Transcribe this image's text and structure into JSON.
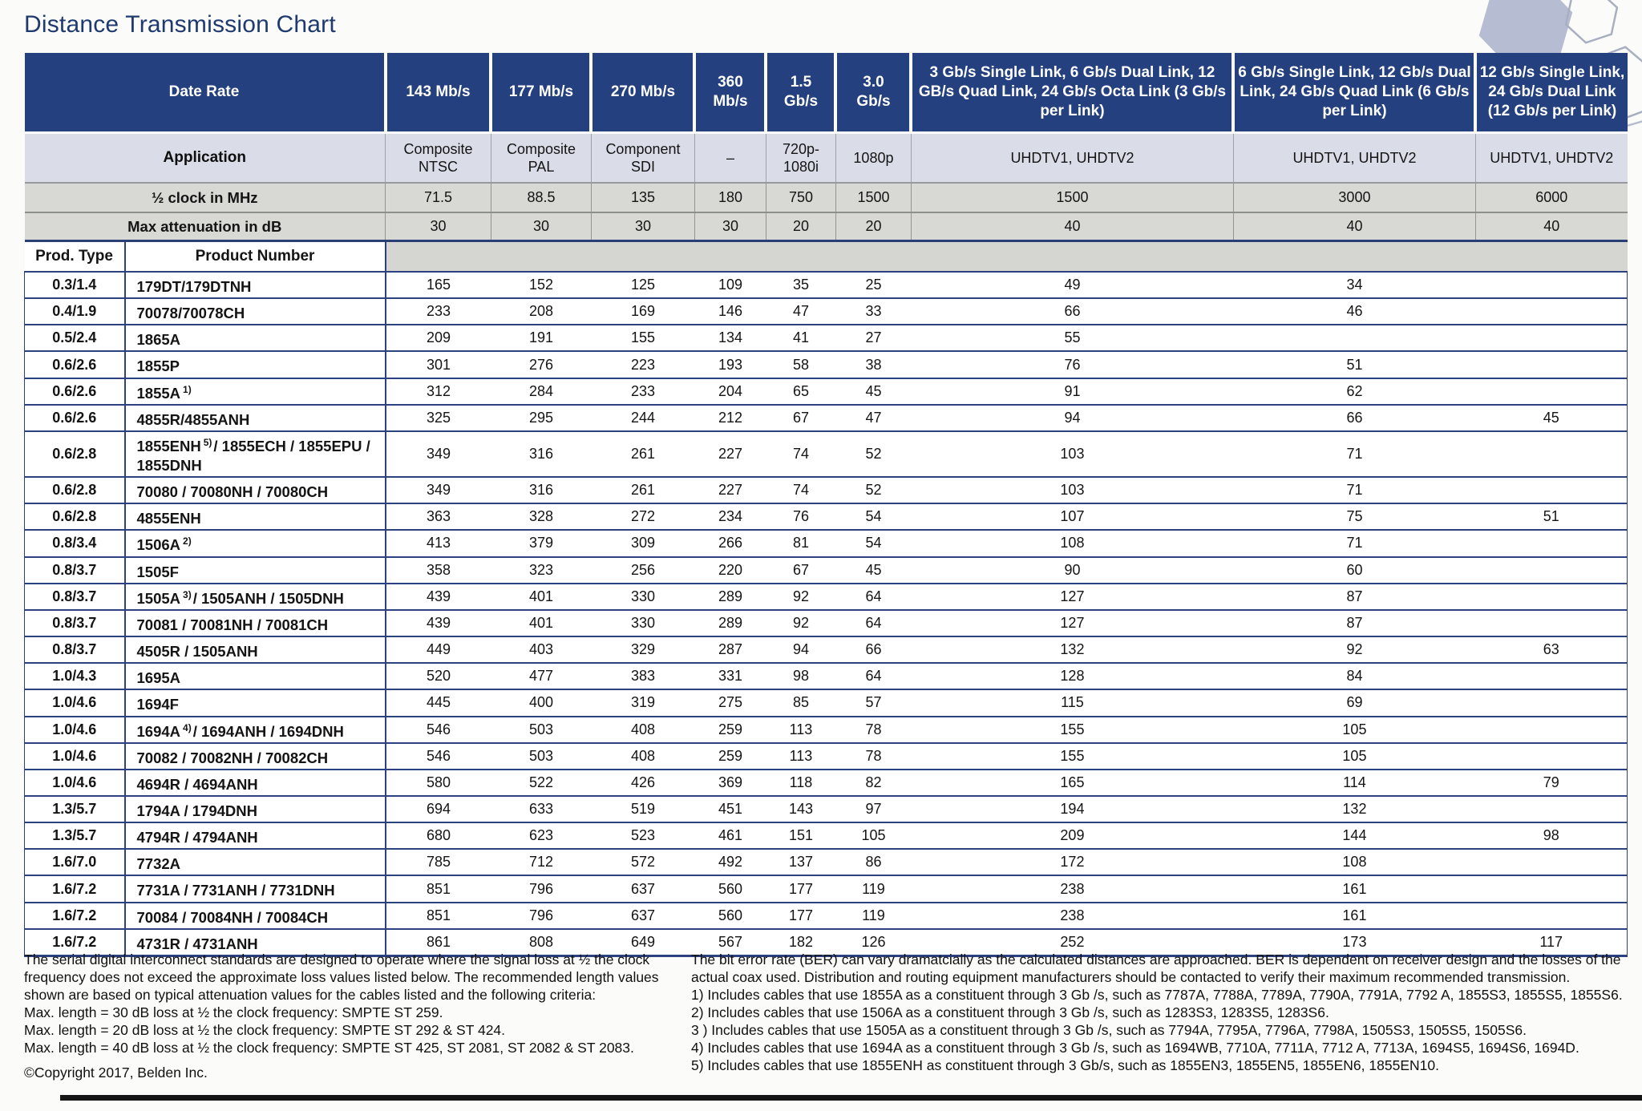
{
  "title": "Distance Transmission Chart",
  "colors": {
    "header_navy": "#24407e",
    "application_row": "#dadce8",
    "metric_row_gray": "#d8d9d4",
    "grid_navy": "#2c4180",
    "title_navy": "#1e3a6f"
  },
  "table": {
    "header": {
      "date_rate_label": "Date Rate",
      "application_label": "Application",
      "clock_label": "½ clock in MHz",
      "attenuation_label": "Max attenuation in dB",
      "prod_type_label": "Prod. Type",
      "product_number_label": "Product Number"
    },
    "columns": [
      {
        "rate": "143 Mb/s",
        "application": "Composite\nNTSC",
        "clock": "71.5",
        "attenuation": "30"
      },
      {
        "rate": "177 Mb/s",
        "application": "Composite\nPAL",
        "clock": "88.5",
        "attenuation": "30"
      },
      {
        "rate": "270 Mb/s",
        "application": "Component\nSDI",
        "clock": "135",
        "attenuation": "30"
      },
      {
        "rate": "360\nMb/s",
        "application": "–",
        "clock": "180",
        "attenuation": "30"
      },
      {
        "rate": "1.5\nGb/s",
        "application": "720p-\n1080i",
        "clock": "750",
        "attenuation": "20"
      },
      {
        "rate": "3.0\nGb/s",
        "application": "1080p",
        "clock": "1500",
        "attenuation": "20"
      },
      {
        "rate": "3 Gb/s Single Link, 6 Gb/s Dual Link, 12 GB/s Quad Link, 24 Gb/s Octa Link (3 Gb/s per Link)",
        "application": "UHDTV1, UHDTV2",
        "clock": "1500",
        "attenuation": "40"
      },
      {
        "rate": "6 Gb/s Single Link, 12 Gb/s Dual Link, 24 Gb/s Quad Link (6 Gb/s per Link)",
        "application": "UHDTV1, UHDTV2",
        "clock": "3000",
        "attenuation": "40"
      },
      {
        "rate": "12 Gb/s Single Link, 24 Gb/s Dual Link (12 Gb/s per Link)",
        "application": "UHDTV1, UHDTV2",
        "clock": "6000",
        "attenuation": "40"
      }
    ],
    "rows": [
      {
        "prod_type": "0.3/1.4",
        "product": "179DT/179DTNH",
        "sup": "",
        "product_post": "",
        "values": [
          "165",
          "152",
          "125",
          "109",
          "35",
          "25",
          "49",
          "34",
          ""
        ]
      },
      {
        "prod_type": "0.4/1.9",
        "product": "70078/70078CH",
        "sup": "",
        "product_post": "",
        "values": [
          "233",
          "208",
          "169",
          "146",
          "47",
          "33",
          "66",
          "46",
          ""
        ]
      },
      {
        "prod_type": "0.5/2.4",
        "product": "1865A",
        "sup": "",
        "product_post": "",
        "values": [
          "209",
          "191",
          "155",
          "134",
          "41",
          "27",
          "55",
          "",
          ""
        ]
      },
      {
        "prod_type": "0.6/2.6",
        "product": "1855P",
        "sup": "",
        "product_post": "",
        "values": [
          "301",
          "276",
          "223",
          "193",
          "58",
          "38",
          "76",
          "51",
          ""
        ]
      },
      {
        "prod_type": "0.6/2.6",
        "product": "1855A",
        "sup": "1)",
        "product_post": "",
        "values": [
          "312",
          "284",
          "233",
          "204",
          "65",
          "45",
          "91",
          "62",
          ""
        ]
      },
      {
        "prod_type": "0.6/2.6",
        "product": "4855R/4855ANH",
        "sup": "",
        "product_post": "",
        "values": [
          "325",
          "295",
          "244",
          "212",
          "67",
          "47",
          "94",
          "66",
          "45"
        ]
      },
      {
        "prod_type": "0.6/2.8",
        "product": "1855ENH",
        "sup": "5)",
        "product_post": "/ 1855ECH / 1855EPU / 1855DNH",
        "values": [
          "349",
          "316",
          "261",
          "227",
          "74",
          "52",
          "103",
          "71",
          ""
        ]
      },
      {
        "prod_type": "0.6/2.8",
        "product": "70080 / 70080NH / 70080CH",
        "sup": "",
        "product_post": "",
        "values": [
          "349",
          "316",
          "261",
          "227",
          "74",
          "52",
          "103",
          "71",
          ""
        ]
      },
      {
        "prod_type": "0.6/2.8",
        "product": "4855ENH",
        "sup": "",
        "product_post": "",
        "values": [
          "363",
          "328",
          "272",
          "234",
          "76",
          "54",
          "107",
          "75",
          "51"
        ]
      },
      {
        "prod_type": "0.8/3.4",
        "product": "1506A",
        "sup": "2)",
        "product_post": "",
        "values": [
          "413",
          "379",
          "309",
          "266",
          "81",
          "54",
          "108",
          "71",
          ""
        ]
      },
      {
        "prod_type": "0.8/3.7",
        "product": "1505F",
        "sup": "",
        "product_post": "",
        "values": [
          "358",
          "323",
          "256",
          "220",
          "67",
          "45",
          "90",
          "60",
          ""
        ]
      },
      {
        "prod_type": "0.8/3.7",
        "product": "1505A",
        "sup": "3)",
        "product_post": "/ 1505ANH / 1505DNH",
        "values": [
          "439",
          "401",
          "330",
          "289",
          "92",
          "64",
          "127",
          "87",
          ""
        ]
      },
      {
        "prod_type": "0.8/3.7",
        "product": "70081 / 70081NH / 70081CH",
        "sup": "",
        "product_post": "",
        "values": [
          "439",
          "401",
          "330",
          "289",
          "92",
          "64",
          "127",
          "87",
          ""
        ]
      },
      {
        "prod_type": "0.8/3.7",
        "product": "4505R / 1505ANH",
        "sup": "",
        "product_post": "",
        "values": [
          "449",
          "403",
          "329",
          "287",
          "94",
          "66",
          "132",
          "92",
          "63"
        ]
      },
      {
        "prod_type": "1.0/4.3",
        "product": "1695A",
        "sup": "",
        "product_post": "",
        "values": [
          "520",
          "477",
          "383",
          "331",
          "98",
          "64",
          "128",
          "84",
          ""
        ]
      },
      {
        "prod_type": "1.0/4.6",
        "product": "1694F",
        "sup": "",
        "product_post": "",
        "values": [
          "445",
          "400",
          "319",
          "275",
          "85",
          "57",
          "115",
          "69",
          ""
        ]
      },
      {
        "prod_type": "1.0/4.6",
        "product": "1694A",
        "sup": "4)",
        "product_post": "/ 1694ANH / 1694DNH",
        "values": [
          "546",
          "503",
          "408",
          "259",
          "113",
          "78",
          "155",
          "105",
          ""
        ]
      },
      {
        "prod_type": "1.0/4.6",
        "product": "70082 / 70082NH / 70082CH",
        "sup": "",
        "product_post": "",
        "values": [
          "546",
          "503",
          "408",
          "259",
          "113",
          "78",
          "155",
          "105",
          ""
        ]
      },
      {
        "prod_type": "1.0/4.6",
        "product": "4694R / 4694ANH",
        "sup": "",
        "product_post": "",
        "values": [
          "580",
          "522",
          "426",
          "369",
          "118",
          "82",
          "165",
          "114",
          "79"
        ]
      },
      {
        "prod_type": "1.3/5.7",
        "product": "1794A / 1794DNH",
        "sup": "",
        "product_post": "",
        "values": [
          "694",
          "633",
          "519",
          "451",
          "143",
          "97",
          "194",
          "132",
          ""
        ]
      },
      {
        "prod_type": "1.3/5.7",
        "product": "4794R / 4794ANH",
        "sup": "",
        "product_post": "",
        "values": [
          "680",
          "623",
          "523",
          "461",
          "151",
          "105",
          "209",
          "144",
          "98"
        ]
      },
      {
        "prod_type": "1.6/7.0",
        "product": "7732A",
        "sup": "",
        "product_post": "",
        "values": [
          "785",
          "712",
          "572",
          "492",
          "137",
          "86",
          "172",
          "108",
          ""
        ]
      },
      {
        "prod_type": "1.6/7.2",
        "product": "7731A / 7731ANH / 7731DNH",
        "sup": "",
        "product_post": "",
        "values": [
          "851",
          "796",
          "637",
          "560",
          "177",
          "119",
          "238",
          "161",
          ""
        ]
      },
      {
        "prod_type": "1.6/7.2",
        "product": "70084 / 70084NH / 70084CH",
        "sup": "",
        "product_post": "",
        "values": [
          "851",
          "796",
          "637",
          "560",
          "177",
          "119",
          "238",
          "161",
          ""
        ]
      },
      {
        "prod_type": "1.6/7.2",
        "product": "4731R / 4731ANH",
        "sup": "",
        "product_post": "",
        "values": [
          "861",
          "808",
          "649",
          "567",
          "182",
          "126",
          "252",
          "173",
          "117"
        ]
      }
    ]
  },
  "footnotes": {
    "left": {
      "paragraph": "The serial digital interconnect standards are designed to operate where the signal loss at ½ the clock frequency does not exceed the approximate loss values listed below. The recommended length values shown are based on typical attenuation values for the cables listed and the following criteria:",
      "lines": [
        "Max. length = 30 dB loss at ½ the clock frequency: SMPTE ST 259.",
        "Max. length = 20 dB loss at ½ the clock frequency: SMPTE ST 292 & ST 424.",
        "Max. length = 40 dB loss at ½ the clock frequency: SMPTE ST 425, ST 2081, ST 2082 & ST 2083."
      ],
      "copyright": "©Copyright 2017, Belden Inc."
    },
    "right": {
      "paragraph": "The bit error rate (BER) can vary dramatcially as the calculated distances are approached. BER is dependent on receiver design and the losses of the actual coax used. Distribution and routing equipment manufacturers should be contacted to verify their maximum recommended transmission.",
      "notes": [
        "1) Includes cables that use 1855A as a constituent through 3 Gb /s, such as 7787A, 7788A, 7789A, 7790A, 7791A, 7792 A, 1855S3, 1855S5, 1855S6.",
        "2) Includes cables that use 1506A as a constituent through 3 Gb /s, such as 1283S3, 1283S5, 1283S6.",
        "3 ) Includes cables that use 1505A as a constituent through 3 Gb /s, such as 7794A, 7795A, 7796A, 7798A, 1505S3, 1505S5, 1505S6.",
        "4) Includes cables that use 1694A as a constituent through 3 Gb /s, such as 1694WB, 7710A, 7711A, 7712 A, 7713A, 1694S5, 1694S6, 1694D.",
        "5) Includes cables that use 1855ENH as constituent through 3 Gb/s, such as 1855EN3, 1855EN5, 1855EN6, 1855EN10."
      ]
    }
  }
}
